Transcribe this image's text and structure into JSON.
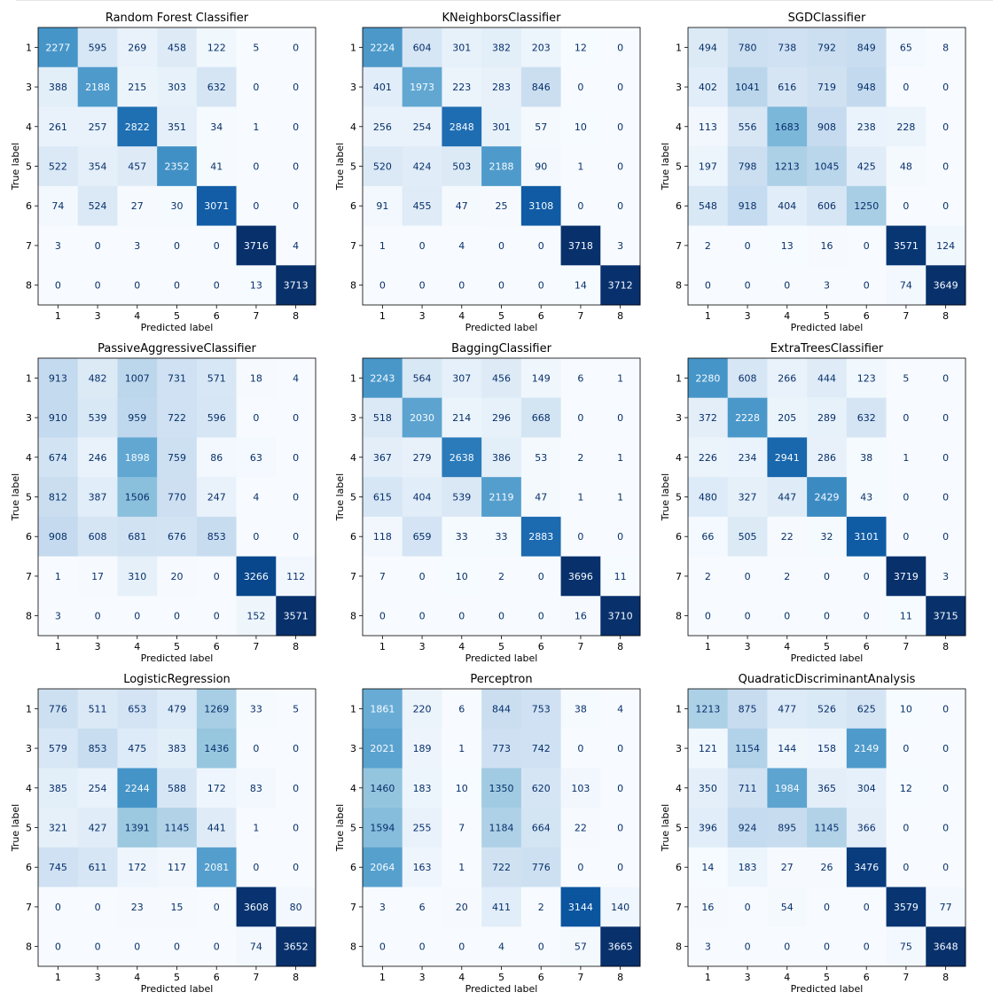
{
  "chart_data": [
    {
      "type": "heatmap",
      "title": "Random Forest Classifier",
      "xlabel": "Predicted label",
      "ylabel": "True label",
      "labels": [
        "1",
        "3",
        "4",
        "5",
        "6",
        "7",
        "8"
      ],
      "colormap": "Blues",
      "matrix": [
        [
          2277,
          595,
          269,
          458,
          122,
          5,
          0
        ],
        [
          388,
          2188,
          215,
          303,
          632,
          0,
          0
        ],
        [
          261,
          257,
          2822,
          351,
          34,
          1,
          0
        ],
        [
          522,
          354,
          457,
          2352,
          41,
          0,
          0
        ],
        [
          74,
          524,
          27,
          30,
          3071,
          0,
          0
        ],
        [
          3,
          0,
          3,
          0,
          0,
          3716,
          4
        ],
        [
          0,
          0,
          0,
          0,
          0,
          13,
          3713
        ]
      ]
    },
    {
      "type": "heatmap",
      "title": "KNeighborsClassifier",
      "xlabel": "Predicted label",
      "ylabel": "True label",
      "labels": [
        "1",
        "3",
        "4",
        "5",
        "6",
        "7",
        "8"
      ],
      "colormap": "Blues",
      "matrix": [
        [
          2224,
          604,
          301,
          382,
          203,
          12,
          0
        ],
        [
          401,
          1973,
          223,
          283,
          846,
          0,
          0
        ],
        [
          256,
          254,
          2848,
          301,
          57,
          10,
          0
        ],
        [
          520,
          424,
          503,
          2188,
          90,
          1,
          0
        ],
        [
          91,
          455,
          47,
          25,
          3108,
          0,
          0
        ],
        [
          1,
          0,
          4,
          0,
          0,
          3718,
          3
        ],
        [
          0,
          0,
          0,
          0,
          0,
          14,
          3712
        ]
      ]
    },
    {
      "type": "heatmap",
      "title": "SGDClassifier",
      "xlabel": "Predicted label",
      "ylabel": "True label",
      "labels": [
        "1",
        "3",
        "4",
        "5",
        "6",
        "7",
        "8"
      ],
      "colormap": "Blues",
      "matrix": [
        [
          494,
          780,
          738,
          792,
          849,
          65,
          8
        ],
        [
          402,
          1041,
          616,
          719,
          948,
          0,
          0
        ],
        [
          113,
          556,
          1683,
          908,
          238,
          228,
          0
        ],
        [
          197,
          798,
          1213,
          1045,
          425,
          48,
          0
        ],
        [
          548,
          918,
          404,
          606,
          1250,
          0,
          0
        ],
        [
          2,
          0,
          13,
          16,
          0,
          3571,
          124
        ],
        [
          0,
          0,
          0,
          3,
          0,
          74,
          3649
        ]
      ]
    },
    {
      "type": "heatmap",
      "title": "PassiveAggressiveClassifier",
      "xlabel": "Predicted label",
      "ylabel": "True label",
      "labels": [
        "1",
        "3",
        "4",
        "5",
        "6",
        "7",
        "8"
      ],
      "colormap": "Blues",
      "matrix": [
        [
          913,
          482,
          1007,
          731,
          571,
          18,
          4
        ],
        [
          910,
          539,
          959,
          722,
          596,
          0,
          0
        ],
        [
          674,
          246,
          1898,
          759,
          86,
          63,
          0
        ],
        [
          812,
          387,
          1506,
          770,
          247,
          4,
          0
        ],
        [
          908,
          608,
          681,
          676,
          853,
          0,
          0
        ],
        [
          1,
          17,
          310,
          20,
          0,
          3266,
          112
        ],
        [
          3,
          0,
          0,
          0,
          0,
          152,
          3571
        ]
      ]
    },
    {
      "type": "heatmap",
      "title": "BaggingClassifier",
      "xlabel": "Predicted label",
      "ylabel": "True label",
      "labels": [
        "1",
        "3",
        "4",
        "5",
        "6",
        "7",
        "8"
      ],
      "colormap": "Blues",
      "matrix": [
        [
          2243,
          564,
          307,
          456,
          149,
          6,
          1
        ],
        [
          518,
          2030,
          214,
          296,
          668,
          0,
          0
        ],
        [
          367,
          279,
          2638,
          386,
          53,
          2,
          1
        ],
        [
          615,
          404,
          539,
          2119,
          47,
          1,
          1
        ],
        [
          118,
          659,
          33,
          33,
          2883,
          0,
          0
        ],
        [
          7,
          0,
          10,
          2,
          0,
          3696,
          11
        ],
        [
          0,
          0,
          0,
          0,
          0,
          16,
          3710
        ]
      ]
    },
    {
      "type": "heatmap",
      "title": "ExtraTreesClassifier",
      "xlabel": "Predicted label",
      "ylabel": "True label",
      "labels": [
        "1",
        "3",
        "4",
        "5",
        "6",
        "7",
        "8"
      ],
      "colormap": "Blues",
      "matrix": [
        [
          2280,
          608,
          266,
          444,
          123,
          5,
          0
        ],
        [
          372,
          2228,
          205,
          289,
          632,
          0,
          0
        ],
        [
          226,
          234,
          2941,
          286,
          38,
          1,
          0
        ],
        [
          480,
          327,
          447,
          2429,
          43,
          0,
          0
        ],
        [
          66,
          505,
          22,
          32,
          3101,
          0,
          0
        ],
        [
          2,
          0,
          2,
          0,
          0,
          3719,
          3
        ],
        [
          0,
          0,
          0,
          0,
          0,
          11,
          3715
        ]
      ]
    },
    {
      "type": "heatmap",
      "title": "LogisticRegression",
      "xlabel": "Predicted label",
      "ylabel": "True label",
      "labels": [
        "1",
        "3",
        "4",
        "5",
        "6",
        "7",
        "8"
      ],
      "colormap": "Blues",
      "matrix": [
        [
          776,
          511,
          653,
          479,
          1269,
          33,
          5
        ],
        [
          579,
          853,
          475,
          383,
          1436,
          0,
          0
        ],
        [
          385,
          254,
          2244,
          588,
          172,
          83,
          0
        ],
        [
          321,
          427,
          1391,
          1145,
          441,
          1,
          0
        ],
        [
          745,
          611,
          172,
          117,
          2081,
          0,
          0
        ],
        [
          0,
          0,
          23,
          15,
          0,
          3608,
          80
        ],
        [
          0,
          0,
          0,
          0,
          0,
          74,
          3652
        ]
      ]
    },
    {
      "type": "heatmap",
      "title": "Perceptron",
      "xlabel": "Predicted label",
      "ylabel": "True label",
      "labels": [
        "1",
        "3",
        "4",
        "5",
        "6",
        "7",
        "8"
      ],
      "colormap": "Blues",
      "matrix": [
        [
          1861,
          220,
          6,
          844,
          753,
          38,
          4
        ],
        [
          2021,
          189,
          1,
          773,
          742,
          0,
          0
        ],
        [
          1460,
          183,
          10,
          1350,
          620,
          103,
          0
        ],
        [
          1594,
          255,
          7,
          1184,
          664,
          22,
          0
        ],
        [
          2064,
          163,
          1,
          722,
          776,
          0,
          0
        ],
        [
          3,
          6,
          20,
          411,
          2,
          3144,
          140
        ],
        [
          0,
          0,
          0,
          4,
          0,
          57,
          3665
        ]
      ]
    },
    {
      "type": "heatmap",
      "title": "QuadraticDiscriminantAnalysis",
      "xlabel": "Predicted label",
      "ylabel": "True label",
      "labels": [
        "1",
        "3",
        "4",
        "5",
        "6",
        "7",
        "8"
      ],
      "colormap": "Blues",
      "matrix": [
        [
          1213,
          875,
          477,
          526,
          625,
          10,
          0
        ],
        [
          121,
          1154,
          144,
          158,
          2149,
          0,
          0
        ],
        [
          350,
          711,
          1984,
          365,
          304,
          12,
          0
        ],
        [
          396,
          924,
          895,
          1145,
          366,
          0,
          0
        ],
        [
          14,
          183,
          27,
          26,
          3476,
          0,
          0
        ],
        [
          16,
          0,
          54,
          0,
          0,
          3579,
          77
        ],
        [
          3,
          0,
          0,
          0,
          0,
          75,
          3648
        ]
      ]
    }
  ]
}
